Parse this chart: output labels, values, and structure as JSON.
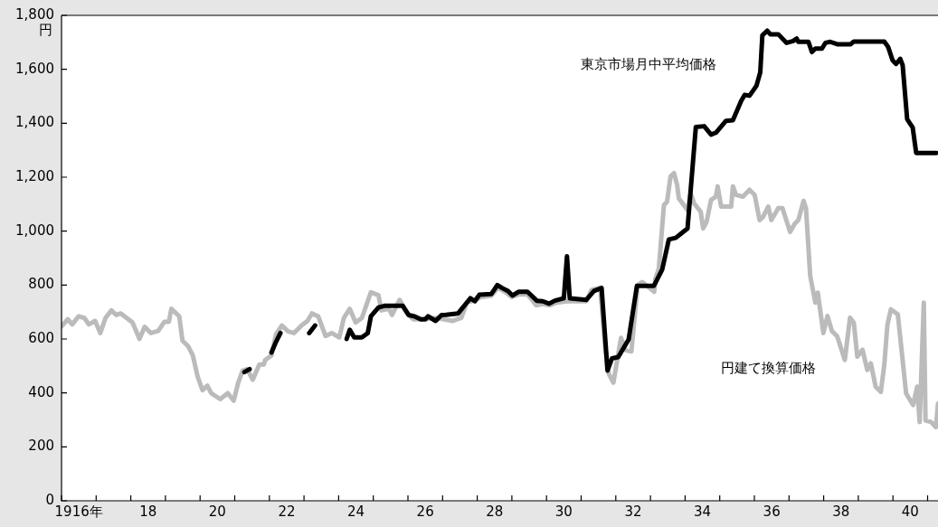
{
  "chart_data": {
    "type": "line",
    "ylabel": "円",
    "xlim": [
      1915.5,
      1940.8
    ],
    "ylim": [
      0,
      1800
    ],
    "xticks": [
      {
        "value": 1915.5,
        "label": null
      },
      {
        "value": 1916,
        "label": "1916年"
      },
      {
        "value": 1916.5,
        "label": null
      },
      {
        "value": 1917.5,
        "label": null
      },
      {
        "value": 1918,
        "label": "18"
      },
      {
        "value": 1918.5,
        "label": null
      },
      {
        "value": 1919.5,
        "label": null
      },
      {
        "value": 1920,
        "label": "20"
      },
      {
        "value": 1920.5,
        "label": null
      },
      {
        "value": 1921.5,
        "label": null
      },
      {
        "value": 1922,
        "label": "22"
      },
      {
        "value": 1922.5,
        "label": null
      },
      {
        "value": 1923.5,
        "label": null
      },
      {
        "value": 1924,
        "label": "24"
      },
      {
        "value": 1924.5,
        "label": null
      },
      {
        "value": 1925.5,
        "label": null
      },
      {
        "value": 1926,
        "label": "26"
      },
      {
        "value": 1926.5,
        "label": null
      },
      {
        "value": 1927.5,
        "label": null
      },
      {
        "value": 1928,
        "label": "28"
      },
      {
        "value": 1928.5,
        "label": null
      },
      {
        "value": 1929.5,
        "label": null
      },
      {
        "value": 1930,
        "label": "30"
      },
      {
        "value": 1930.5,
        "label": null
      },
      {
        "value": 1931.5,
        "label": null
      },
      {
        "value": 1932,
        "label": "32"
      },
      {
        "value": 1932.5,
        "label": null
      },
      {
        "value": 1933.5,
        "label": null
      },
      {
        "value": 1934,
        "label": "34"
      },
      {
        "value": 1934.5,
        "label": null
      },
      {
        "value": 1935.5,
        "label": null
      },
      {
        "value": 1936,
        "label": "36"
      },
      {
        "value": 1936.5,
        "label": null
      },
      {
        "value": 1937.5,
        "label": null
      },
      {
        "value": 1938,
        "label": "38"
      },
      {
        "value": 1938.5,
        "label": null
      },
      {
        "value": 1939.5,
        "label": null
      },
      {
        "value": 1940,
        "label": "40"
      },
      {
        "value": 1940.5,
        "label": null
      }
    ],
    "yticks": [
      0,
      200,
      400,
      600,
      800,
      {
        "value": 1000,
        "label": "1,000"
      },
      {
        "value": 1200,
        "label": "1,200"
      },
      {
        "value": 1400,
        "label": "1,400"
      },
      {
        "value": 1600,
        "label": "1,600"
      },
      {
        "value": 1800,
        "label": "1,800"
      }
    ],
    "series": [
      {
        "name": "円建て換算価格",
        "color": "#bbbbbb",
        "x": [
          1915.5,
          1915.68,
          1915.81,
          1915.99,
          1916.16,
          1916.29,
          1916.47,
          1916.62,
          1916.77,
          1916.94,
          1917.08,
          1917.21,
          1917.55,
          1917.75,
          1917.9,
          1918.08,
          1918.29,
          1918.47,
          1918.6,
          1918.67,
          1918.9,
          1918.99,
          1919.16,
          1919.29,
          1919.43,
          1919.57,
          1919.71,
          1919.82,
          1920.08,
          1920.3,
          1920.47,
          1920.6,
          1920.73,
          1920.86,
          1921.02,
          1921.21,
          1921.34,
          1921.38,
          1921.56,
          1921.69,
          1921.86,
          1922.04,
          1922.21,
          1922.43,
          1922.6,
          1922.73,
          1922.91,
          1923.12,
          1923.3,
          1923.52,
          1923.65,
          1923.82,
          1923.99,
          1924.17,
          1924.43,
          1924.65,
          1924.73,
          1924.95,
          1925.04,
          1925.26,
          1925.47,
          1925.65,
          1925.91,
          1926.34,
          1926.78,
          1927.04,
          1927.2,
          1927.45,
          1927.6,
          1927.9,
          1928.1,
          1928.3,
          1928.5,
          1928.7,
          1928.95,
          1929.2,
          1929.4,
          1929.6,
          1929.8,
          1930.1,
          1930.4,
          1930.65,
          1930.8,
          1931.05,
          1931.2,
          1931.3,
          1931.43,
          1931.65,
          1931.78,
          1931.95,
          1932.13,
          1932.26,
          1932.61,
          1932.64,
          1932.74,
          1932.89,
          1932.98,
          1933.08,
          1933.18,
          1933.27,
          1933.32,
          1933.57,
          1933.66,
          1933.76,
          1933.95,
          1934.02,
          1934.12,
          1934.25,
          1934.39,
          1934.44,
          1934.54,
          1934.83,
          1934.88,
          1934.97,
          1935.17,
          1935.36,
          1935.51,
          1935.65,
          1935.75,
          1935.9,
          1935.99,
          1936.19,
          1936.31,
          1936.53,
          1936.67,
          1936.77,
          1936.92,
          1936.99,
          1937.11,
          1937.26,
          1937.33,
          1937.49,
          1937.61,
          1937.74,
          1937.89,
          1938.11,
          1938.26,
          1938.37,
          1938.47,
          1938.62,
          1938.76,
          1938.86,
          1939.0,
          1939.15,
          1939.25,
          1939.34,
          1939.44,
          1939.64,
          1939.88,
          1940.08,
          1940.2,
          1940.27,
          1940.39,
          1940.44,
          1940.6,
          1940.74,
          1940.8
        ],
        "values": [
          647,
          673,
          654,
          684,
          678,
          654,
          667,
          622,
          678,
          706,
          689,
          695,
          661,
          600,
          645,
          622,
          630,
          664,
          664,
          712,
          684,
          594,
          572,
          539,
          460,
          410,
          427,
          399,
          377,
          399,
          371,
          438,
          483,
          488,
          449,
          505,
          505,
          522,
          539,
          617,
          650,
          628,
          622,
          650,
          667,
          695,
          684,
          611,
          622,
          606,
          678,
          712,
          661,
          678,
          773,
          762,
          706,
          712,
          689,
          745,
          695,
          673,
          673,
          678,
          667,
          678,
          735,
          745,
          755,
          760,
          790,
          775,
          755,
          765,
          765,
          725,
          730,
          725,
          735,
          740,
          740,
          740,
          782,
          790,
          560,
          470,
          438,
          604,
          559,
          554,
          800,
          811,
          775,
          822,
          860,
          1097,
          1109,
          1203,
          1215,
          1171,
          1121,
          1078,
          1140,
          1103,
          1072,
          1010,
          1034,
          1116,
          1128,
          1166,
          1091,
          1091,
          1166,
          1134,
          1128,
          1153,
          1134,
          1041,
          1053,
          1091,
          1041,
          1085,
          1085,
          997,
          1028,
          1041,
          1112,
          1085,
          835,
          735,
          772,
          622,
          685,
          629,
          610,
          522,
          679,
          660,
          535,
          560,
          485,
          510,
          423,
          404,
          504,
          653,
          710,
          691,
          398,
          355,
          423,
          292,
          735,
          298,
          292,
          273,
          360
        ]
      },
      {
        "name": "東京市場月中平均価格",
        "color": "#000000",
        "x": [
          1920.78,
          1920.93,
          1921.2,
          1921.56,
          1921.69,
          1921.82,
          1922.2,
          1922.65,
          1922.82,
          1923.3,
          1923.73,
          1923.82,
          1923.95,
          1924.17,
          1924.34,
          1924.43,
          1924.65,
          1924.82,
          1925.35,
          1925.52,
          1925.69,
          1925.87,
          1926.0,
          1926.08,
          1926.3,
          1926.47,
          1926.6,
          1926.95,
          1927.3,
          1927.43,
          1927.56,
          1927.91,
          1928.08,
          1928.22,
          1928.39,
          1928.52,
          1928.69,
          1928.95,
          1929.22,
          1929.39,
          1929.57,
          1929.74,
          1930.0,
          1930.09,
          1930.17,
          1930.65,
          1930.87,
          1931.09,
          1931.26,
          1931.39,
          1931.57,
          1931.87,
          1932.11,
          1932.6,
          1932.84,
          1933.03,
          1933.23,
          1933.57,
          1933.81,
          1934.05,
          1934.25,
          1934.39,
          1934.68,
          1934.88,
          1935.12,
          1935.22,
          1935.36,
          1935.56,
          1935.67,
          1935.73,
          1935.87,
          1935.96,
          1936.19,
          1936.43,
          1936.62,
          1936.72,
          1936.77,
          1937.06,
          1937.16,
          1937.26,
          1937.45,
          1937.55,
          1937.69,
          1937.89,
          1938.28,
          1938.37,
          1939.25,
          1939.36,
          1939.49,
          1939.59,
          1939.71,
          1939.78,
          1939.91,
          1940.07,
          1940.17,
          1940.31,
          1940.75
        ],
        "values": [
          477,
          488,
          null,
          550,
          589,
          622,
          null,
          622,
          650,
          null,
          600,
          634,
          606,
          606,
          622,
          684,
          717,
          723,
          723,
          689,
          684,
          673,
          673,
          684,
          667,
          689,
          690,
          695,
          751,
          740,
          764,
          767,
          800,
          789,
          778,
          761,
          775,
          775,
          742,
          740,
          731,
          742,
          751,
          907,
          751,
          745,
          778,
          789,
          483,
          528,
          533,
          598,
          797,
          797,
          858,
          969,
          975,
          1010,
          1386,
          1389,
          1358,
          1365,
          1409,
          1411,
          1483,
          1505,
          1502,
          1539,
          1589,
          1726,
          1743,
          1730,
          1730,
          1698,
          1705,
          1714,
          1702,
          1702,
          1664,
          1677,
          1677,
          1698,
          1702,
          1693,
          1693,
          1703,
          1703,
          1683,
          1633,
          1620,
          1639,
          1615,
          1415,
          1384,
          1290,
          1290,
          1290
        ]
      }
    ]
  }
}
